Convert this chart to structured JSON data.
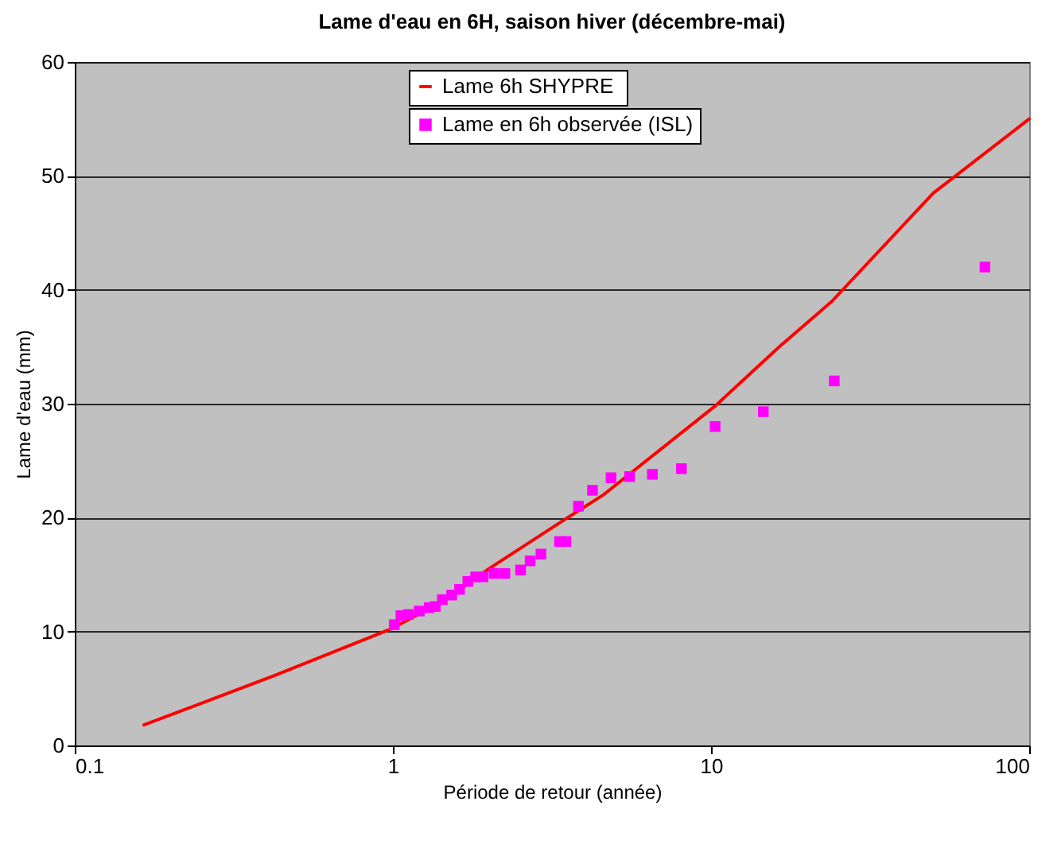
{
  "chart_data": {
    "type": "line",
    "title": "Lame d'eau en 6H, saison hiver (décembre-mai)",
    "xlabel": "Période de retour (année)",
    "ylabel": "Lame d'eau (mm)",
    "log": "x",
    "xlim": [
      0.1,
      100
    ],
    "xticks": [
      0.1,
      1,
      10,
      100
    ],
    "ylim": [
      0,
      60
    ],
    "yticks": [
      0,
      10,
      20,
      30,
      40,
      50,
      60
    ],
    "grid": "y",
    "legend": "top",
    "series": [
      {
        "name": "Lame 6h  SHYPRE",
        "color": "#ff0000",
        "marker": "none",
        "line_style": "solid",
        "x": [
          0.165,
          0.43,
          1,
          1.5,
          2,
          3.54,
          4.59,
          10.3,
          16.4,
          24,
          50,
          100
        ],
        "values": [
          1.8,
          6.2,
          10.3,
          13.0,
          15.5,
          20,
          22.0,
          29.8,
          35.0,
          39,
          48.5,
          55
        ]
      },
      {
        "name": "Lame en 6h observée (ISL)",
        "type": "scatter",
        "color": "#ff00ff",
        "marker": "square",
        "x": [
          1.01,
          1.06,
          1.12,
          1.21,
          1.3,
          1.36,
          1.43,
          1.53,
          1.62,
          1.72,
          1.82,
          1.92,
          2.08,
          2.25,
          2.52,
          2.7,
          2.92,
          3.34,
          3.5,
          3.83,
          4.24,
          4.85,
          5.55,
          6.54,
          8.07,
          10.3,
          14.6,
          24.4,
          72.6
        ],
        "values": [
          10.6,
          11.4,
          11.5,
          11.8,
          12.1,
          12.2,
          12.8,
          13.2,
          13.7,
          14.4,
          14.8,
          14.8,
          15.1,
          15.1,
          15.4,
          16.2,
          16.8,
          17.9,
          17.9,
          21.0,
          22.4,
          23.5,
          23.6,
          23.8,
          24.3,
          28.0,
          29.3,
          32.0,
          42.0
        ]
      }
    ]
  }
}
